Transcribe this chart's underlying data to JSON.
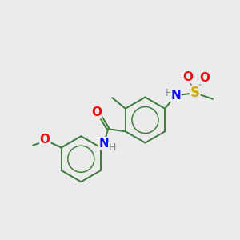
{
  "background_color": "#ebebeb",
  "bond_color": "#3a7a3a",
  "atom_colors": {
    "N": "#1010ee",
    "O": "#ee1010",
    "S": "#ccaa00",
    "H": "#888888"
  },
  "figsize": [
    3.0,
    3.0
  ],
  "dpi": 100
}
